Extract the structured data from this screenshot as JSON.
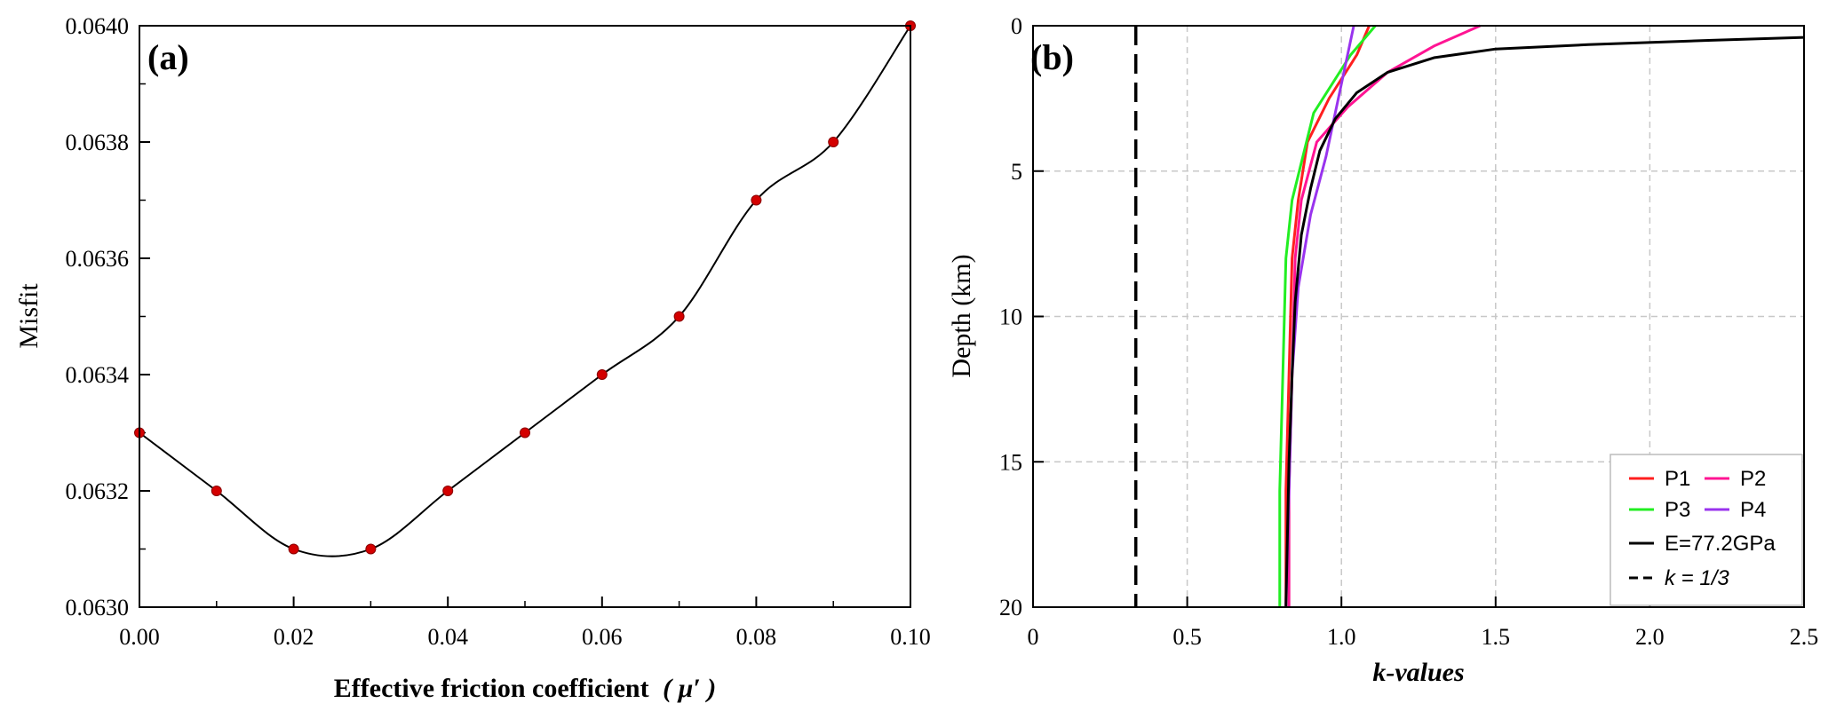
{
  "chart_data": [
    {
      "type": "line",
      "panel_label": "(a)",
      "xlabel": "Effective friction coefficient",
      "xlabel_symbol": "( μ′ )",
      "ylabel": "Misfit",
      "xlim": [
        0,
        0.1
      ],
      "ylim": [
        0.063,
        0.064
      ],
      "x_ticks": [
        "0.00",
        "0.02",
        "0.04",
        "0.06",
        "0.08",
        "0.10"
      ],
      "y_ticks": [
        "0.0630",
        "0.0632",
        "0.0634",
        "0.0636",
        "0.0638",
        "0.0640"
      ],
      "grid": false,
      "point_color": "#d40000",
      "line_color": "#000000",
      "series": [
        {
          "x": [
            0.0,
            0.01,
            0.02,
            0.03,
            0.04,
            0.05,
            0.06,
            0.07,
            0.08,
            0.09,
            0.1
          ],
          "y": [
            0.0633,
            0.0632,
            0.0631,
            0.0631,
            0.0632,
            0.0633,
            0.0634,
            0.0635,
            0.0637,
            0.0638,
            0.064
          ]
        }
      ]
    },
    {
      "type": "line",
      "panel_label": "(b)",
      "xlabel": "k-values",
      "ylabel": "Depth (km)",
      "xlim": [
        0,
        2.5
      ],
      "ylim": [
        20,
        0
      ],
      "x_ticks": [
        "0",
        "0.5",
        "1.0",
        "1.5",
        "2.0",
        "2.5"
      ],
      "y_ticks": [
        "0",
        "5",
        "10",
        "15",
        "20"
      ],
      "grid": true,
      "legend_position": "bottom-right",
      "series": [
        {
          "name": "P1",
          "color": "#ff1f1f",
          "style": "solid",
          "k": [
            1.09,
            1.05,
            0.96,
            0.89,
            0.86,
            0.84,
            0.83,
            0.82,
            0.82
          ],
          "depth": [
            0,
            1,
            2.5,
            4,
            6,
            8,
            12,
            16,
            20
          ]
        },
        {
          "name": "P2",
          "color": "#ff1493",
          "style": "solid",
          "k": [
            1.45,
            1.3,
            1.15,
            1.02,
            0.92,
            0.87,
            0.85,
            0.84,
            0.83,
            0.83
          ],
          "depth": [
            0,
            0.7,
            1.6,
            2.8,
            4,
            6,
            8,
            12,
            16,
            20
          ]
        },
        {
          "name": "P3",
          "color": "#22ee22",
          "style": "solid",
          "k": [
            1.11,
            1.03,
            0.91,
            0.84,
            0.82,
            0.81,
            0.8,
            0.8
          ],
          "depth": [
            0,
            1,
            3,
            6,
            8,
            12,
            16,
            20
          ]
        },
        {
          "name": "P4",
          "color": "#9933ee",
          "style": "solid",
          "k": [
            1.04,
            1.01,
            0.98,
            0.95,
            0.9,
            0.86,
            0.84,
            0.83,
            0.82
          ],
          "depth": [
            0,
            1.5,
            3,
            4.5,
            6.5,
            9,
            12,
            16,
            20
          ]
        },
        {
          "name": "E=77.2GPa",
          "color": "#000000",
          "style": "solid",
          "k": [
            2.5,
            2.2,
            1.8,
            1.5,
            1.3,
            1.15,
            1.05,
            0.98,
            0.93,
            0.9,
            0.87,
            0.85,
            0.84,
            0.83,
            0.82
          ],
          "depth": [
            0.4,
            0.5,
            0.65,
            0.8,
            1.1,
            1.6,
            2.3,
            3.2,
            4.3,
            5.6,
            7.2,
            9.5,
            12,
            15,
            20
          ]
        },
        {
          "name": "k = 1/3",
          "color": "#000000",
          "style": "dashed",
          "k": [
            0.3333,
            0.3333
          ],
          "depth": [
            0,
            20
          ]
        }
      ]
    }
  ]
}
